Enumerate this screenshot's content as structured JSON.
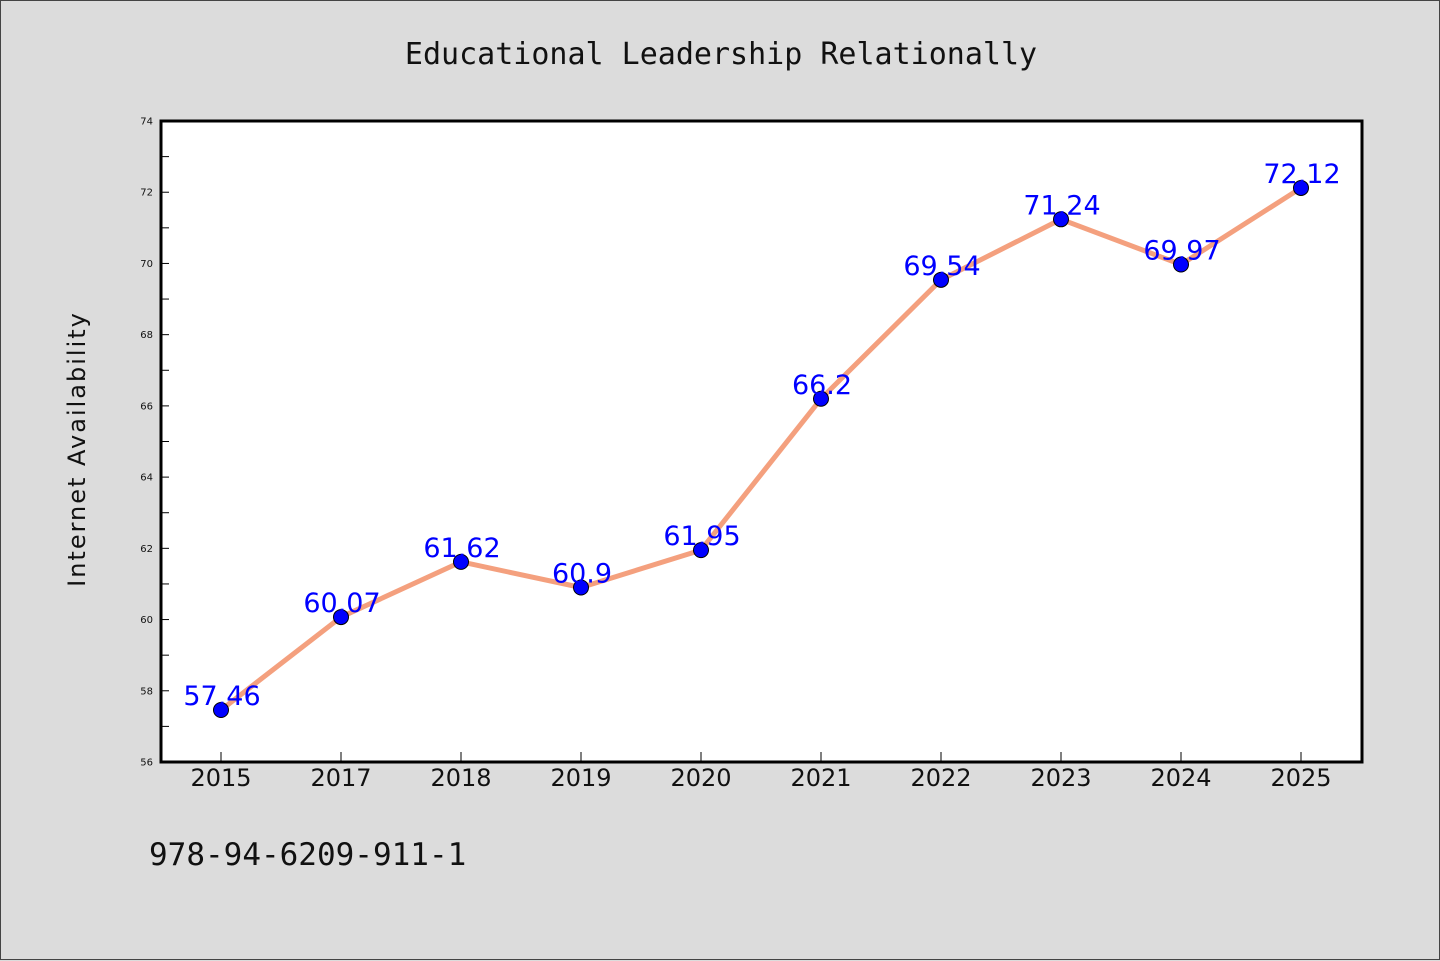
{
  "chart_data": {
    "type": "line",
    "title": "Educational Leadership Relationally",
    "xlabel": "",
    "ylabel": "Internet Availability",
    "categories": [
      "2015",
      "2017",
      "2018",
      "2019",
      "2020",
      "2021",
      "2022",
      "2023",
      "2024",
      "2025"
    ],
    "series": [
      {
        "values": [
          57.46,
          60.07,
          61.62,
          60.9,
          61.95,
          66.2,
          69.54,
          71.24,
          69.97,
          72.12
        ],
        "line_color": "#f4a07e",
        "marker_color": "#0000ff",
        "label_color": "#0000ff"
      }
    ],
    "data_labels": [
      "57.46",
      "60.07",
      "61.62",
      "60.9",
      "61.95",
      "66.2",
      "69.54",
      "71.24",
      "69.97",
      "72.12"
    ],
    "ylim": [
      56,
      74
    ],
    "yticks": [
      "56",
      "58",
      "60",
      "62",
      "64",
      "66",
      "68",
      "70",
      "72",
      "74"
    ],
    "grid": false,
    "legend": "none"
  },
  "footer_text": "978-94-6209-911-1",
  "colors": {
    "figure_background": "#dcdcdc",
    "plot_background": "#ffffff",
    "axis": "#000000"
  }
}
